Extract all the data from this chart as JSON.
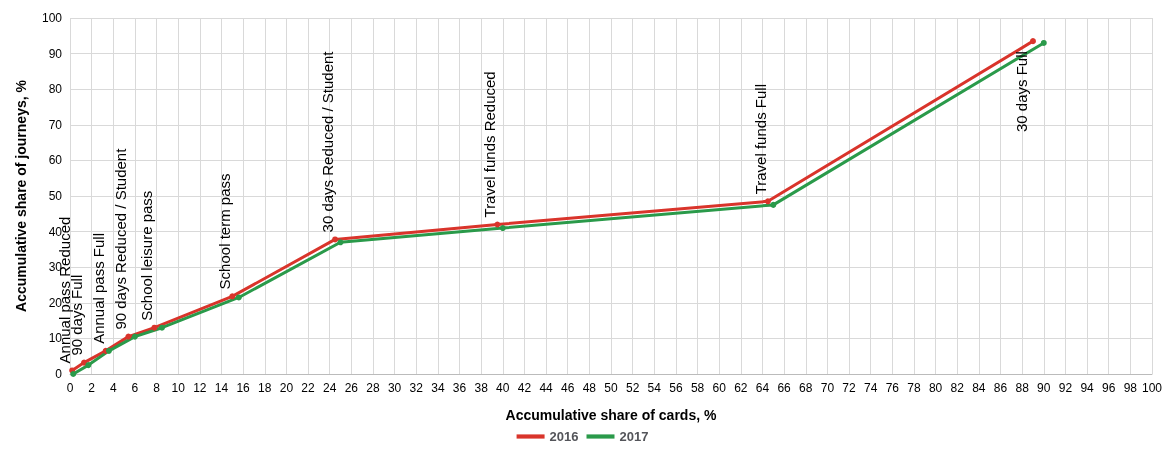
{
  "chart_data": {
    "type": "line",
    "xlabel": "Accumulative share of cards, %",
    "ylabel": "Accumulative share of journeys, %",
    "xlim": [
      0,
      100
    ],
    "xticks": [
      0,
      2,
      4,
      6,
      8,
      10,
      12,
      14,
      16,
      18,
      20,
      22,
      24,
      26,
      28,
      30,
      32,
      34,
      36,
      38,
      40,
      42,
      44,
      46,
      48,
      50,
      52,
      54,
      56,
      58,
      60,
      62,
      64,
      66,
      68,
      70,
      72,
      74,
      76,
      78,
      80,
      82,
      84,
      86,
      88,
      90,
      92,
      94,
      96,
      98,
      100
    ],
    "ylim": [
      0,
      100
    ],
    "yticks": [
      0,
      10,
      20,
      30,
      40,
      50,
      60,
      70,
      80,
      90,
      100
    ],
    "grid": true,
    "legend": "bottom",
    "marker": "circle",
    "series": [
      {
        "name": "2016",
        "color": "#d9342b",
        "x": [
          0.2,
          1.3,
          3.3,
          5.4,
          7.8,
          15,
          24.5,
          39.5,
          64.5,
          89
        ],
        "values": [
          1,
          3.2,
          6.5,
          10.5,
          13,
          21.8,
          37.8,
          42,
          48.5,
          93.5
        ]
      },
      {
        "name": "2017",
        "color": "#2a9a4a",
        "x": [
          0.3,
          1.7,
          3.6,
          6,
          8.5,
          15.6,
          25,
          40,
          65,
          90
        ],
        "values": [
          0,
          2.5,
          6.5,
          10.5,
          13,
          21.5,
          37,
          41,
          47.5,
          93
        ]
      }
    ],
    "annotations": [
      {
        "text": "Annual pass Reduced",
        "x": 0.2,
        "y": 1
      },
      {
        "text": "90 days Full",
        "x": 1.3,
        "y": 3.2
      },
      {
        "text": "Annual pass Full",
        "x": 3.3,
        "y": 6.5
      },
      {
        "text": "90 days Reduced / Student",
        "x": 5.4,
        "y": 10.5
      },
      {
        "text": "School leisure pass",
        "x": 7.8,
        "y": 13
      },
      {
        "text": "School term pass",
        "x": 15,
        "y": 21.8
      },
      {
        "text": "30 days Reduced / Student",
        "x": 24.5,
        "y": 37.8
      },
      {
        "text": "Travel funds Reduced",
        "x": 39.5,
        "y": 42
      },
      {
        "text": "Travel funds Full",
        "x": 64.5,
        "y": 48.5
      },
      {
        "text": "30 days Full",
        "x": 89,
        "y": 93.5
      }
    ]
  }
}
